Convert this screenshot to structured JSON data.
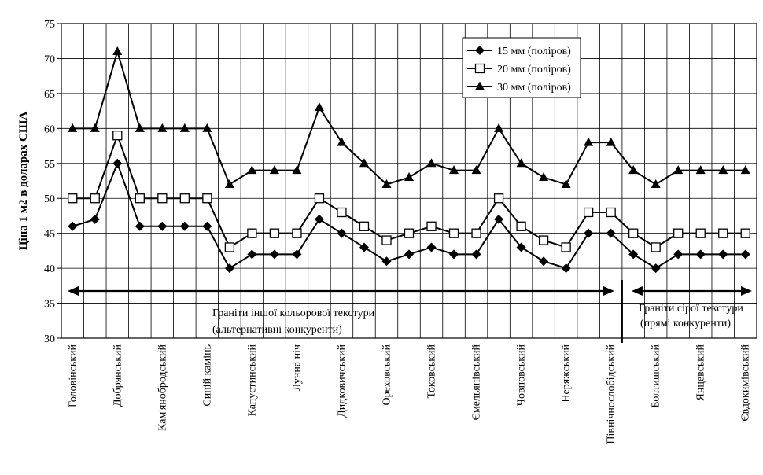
{
  "chart_data": {
    "type": "line",
    "ylabel": "Ціна 1 м2 в доларах США",
    "xlabel": "",
    "ylim": [
      30,
      75
    ],
    "yticks": [
      30,
      35,
      40,
      45,
      50,
      55,
      60,
      65,
      70,
      75
    ],
    "grid": true,
    "legend_position": "top-right",
    "categories": [
      "Головінський",
      "",
      "Добрянський",
      "",
      "Кам'янобродський",
      "",
      "Синій камінь",
      "",
      "Капустинський",
      "",
      "Лунна ніч",
      "",
      "Дидковичський",
      "",
      "Ореховський",
      "",
      "Токовський",
      "",
      "Ємельянівський",
      "",
      "Човновський",
      "",
      "Неряжський",
      "",
      "Північнослобідський",
      "",
      "Болтишський",
      "",
      "Янцевський",
      "",
      "Євдокимівський"
    ],
    "series": [
      {
        "name": "15 мм (поліров)",
        "marker": "diamond",
        "values": [
          46,
          47,
          55,
          46,
          46,
          46,
          46,
          40,
          42,
          42,
          42,
          47,
          45,
          43,
          41,
          42,
          43,
          42,
          42,
          47,
          43,
          41,
          40,
          45,
          45,
          42,
          40,
          42,
          42,
          42,
          42
        ]
      },
      {
        "name": "20 мм (поліров)",
        "marker": "square",
        "values": [
          50,
          50,
          59,
          50,
          50,
          50,
          50,
          43,
          45,
          45,
          45,
          50,
          48,
          46,
          44,
          45,
          46,
          45,
          45,
          50,
          46,
          44,
          43,
          48,
          48,
          45,
          43,
          45,
          45,
          45,
          45
        ]
      },
      {
        "name": "30 мм (поліров)",
        "marker": "triangle",
        "values": [
          60,
          60,
          71,
          60,
          60,
          60,
          60,
          52,
          54,
          54,
          54,
          63,
          58,
          55,
          52,
          53,
          55,
          54,
          54,
          60,
          55,
          53,
          52,
          58,
          58,
          54,
          52,
          54,
          54,
          54,
          54
        ]
      }
    ],
    "annotations": [
      {
        "line1": "Граніти іншої кольорової текстури",
        "line2": "(альтернативні конкуренти)",
        "from_index": 0,
        "to_index": 24
      },
      {
        "line1": "Граніти сірої текстури",
        "line2": "(прямі конкуренти)",
        "from_index": 25,
        "to_index": 30
      }
    ],
    "divider_after_index": 24
  }
}
